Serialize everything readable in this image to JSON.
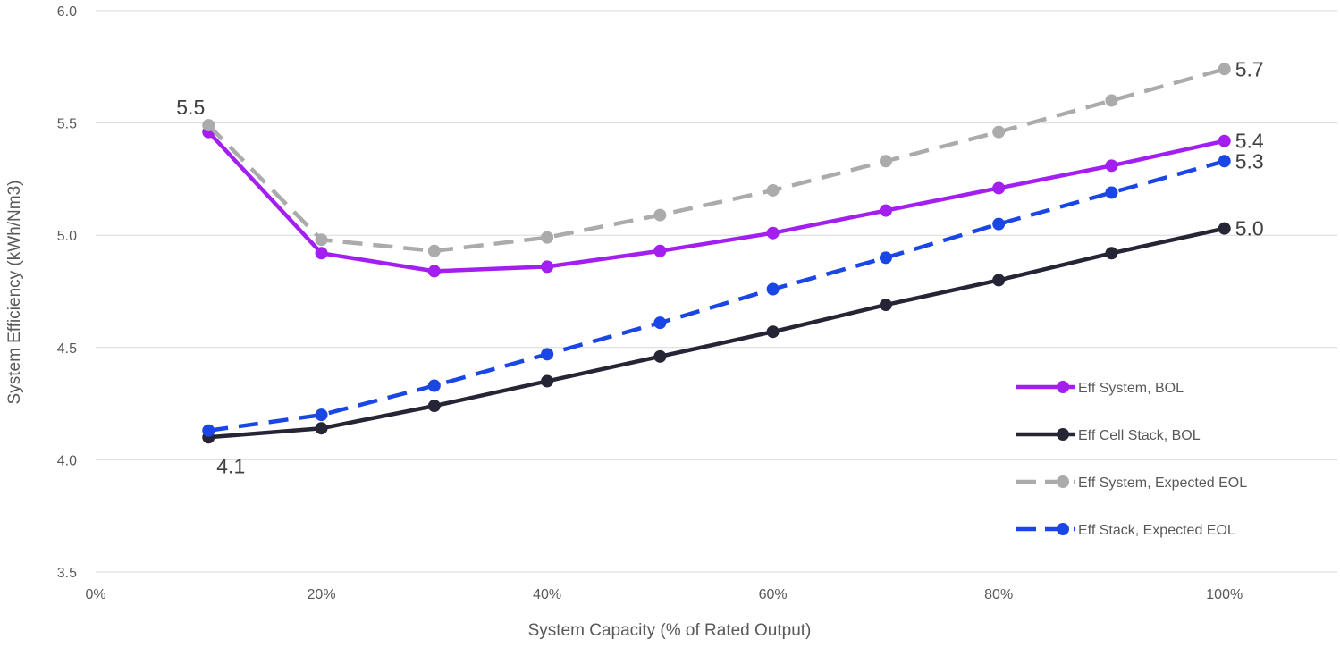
{
  "chart_data": {
    "type": "line",
    "xlabel": "System Capacity (% of Rated Output)",
    "ylabel": "System Efficiency (kWh/Nm3)",
    "xlim": [
      0,
      110
    ],
    "ylim": [
      3.5,
      6.0
    ],
    "x_ticks": [
      0,
      20,
      40,
      60,
      80,
      100
    ],
    "x_tick_labels": [
      "0%",
      "20%",
      "40%",
      "60%",
      "80%",
      "100%"
    ],
    "y_ticks": [
      3.5,
      4.0,
      4.5,
      5.0,
      5.5,
      6.0
    ],
    "y_tick_labels": [
      "3.5",
      "4.0",
      "4.5",
      "5.0",
      "5.5",
      "6.0"
    ],
    "grid": "horizontal",
    "legend_position": "bottom-right",
    "x": [
      10,
      20,
      30,
      40,
      50,
      60,
      70,
      80,
      90,
      100
    ],
    "series": [
      {
        "name": "Eff System, BOL",
        "color": "#a21ff0",
        "dash": "solid",
        "values": [
          5.46,
          4.92,
          4.84,
          4.86,
          4.93,
          5.01,
          5.11,
          5.21,
          5.31,
          5.42
        ]
      },
      {
        "name": "Eff Cell Stack, BOL",
        "color": "#252535",
        "dash": "solid",
        "values": [
          4.1,
          4.14,
          4.24,
          4.35,
          4.46,
          4.57,
          4.69,
          4.8,
          4.92,
          5.03
        ]
      },
      {
        "name": "Eff System, Expected EOL",
        "color": "#ababab",
        "dash": "dashed",
        "values": [
          5.49,
          4.98,
          4.93,
          4.99,
          5.09,
          5.2,
          5.33,
          5.46,
          5.6,
          5.74
        ]
      },
      {
        "name": "Eff Stack, Expected EOL",
        "color": "#1a46e6",
        "dash": "dashed",
        "values": [
          4.13,
          4.2,
          4.33,
          4.47,
          4.61,
          4.76,
          4.9,
          5.05,
          5.19,
          5.33
        ]
      }
    ],
    "data_labels": [
      {
        "text": "5.5",
        "x": 10,
        "y": 5.49,
        "placement": "above-left"
      },
      {
        "text": "4.1",
        "x": 10,
        "y": 4.1,
        "placement": "below"
      },
      {
        "text": "5.7",
        "x": 100,
        "y": 5.74,
        "placement": "right"
      },
      {
        "text": "5.4",
        "x": 100,
        "y": 5.42,
        "placement": "right"
      },
      {
        "text": "5.3",
        "x": 100,
        "y": 5.33,
        "placement": "right"
      },
      {
        "text": "5.0",
        "x": 100,
        "y": 5.03,
        "placement": "right"
      }
    ]
  }
}
